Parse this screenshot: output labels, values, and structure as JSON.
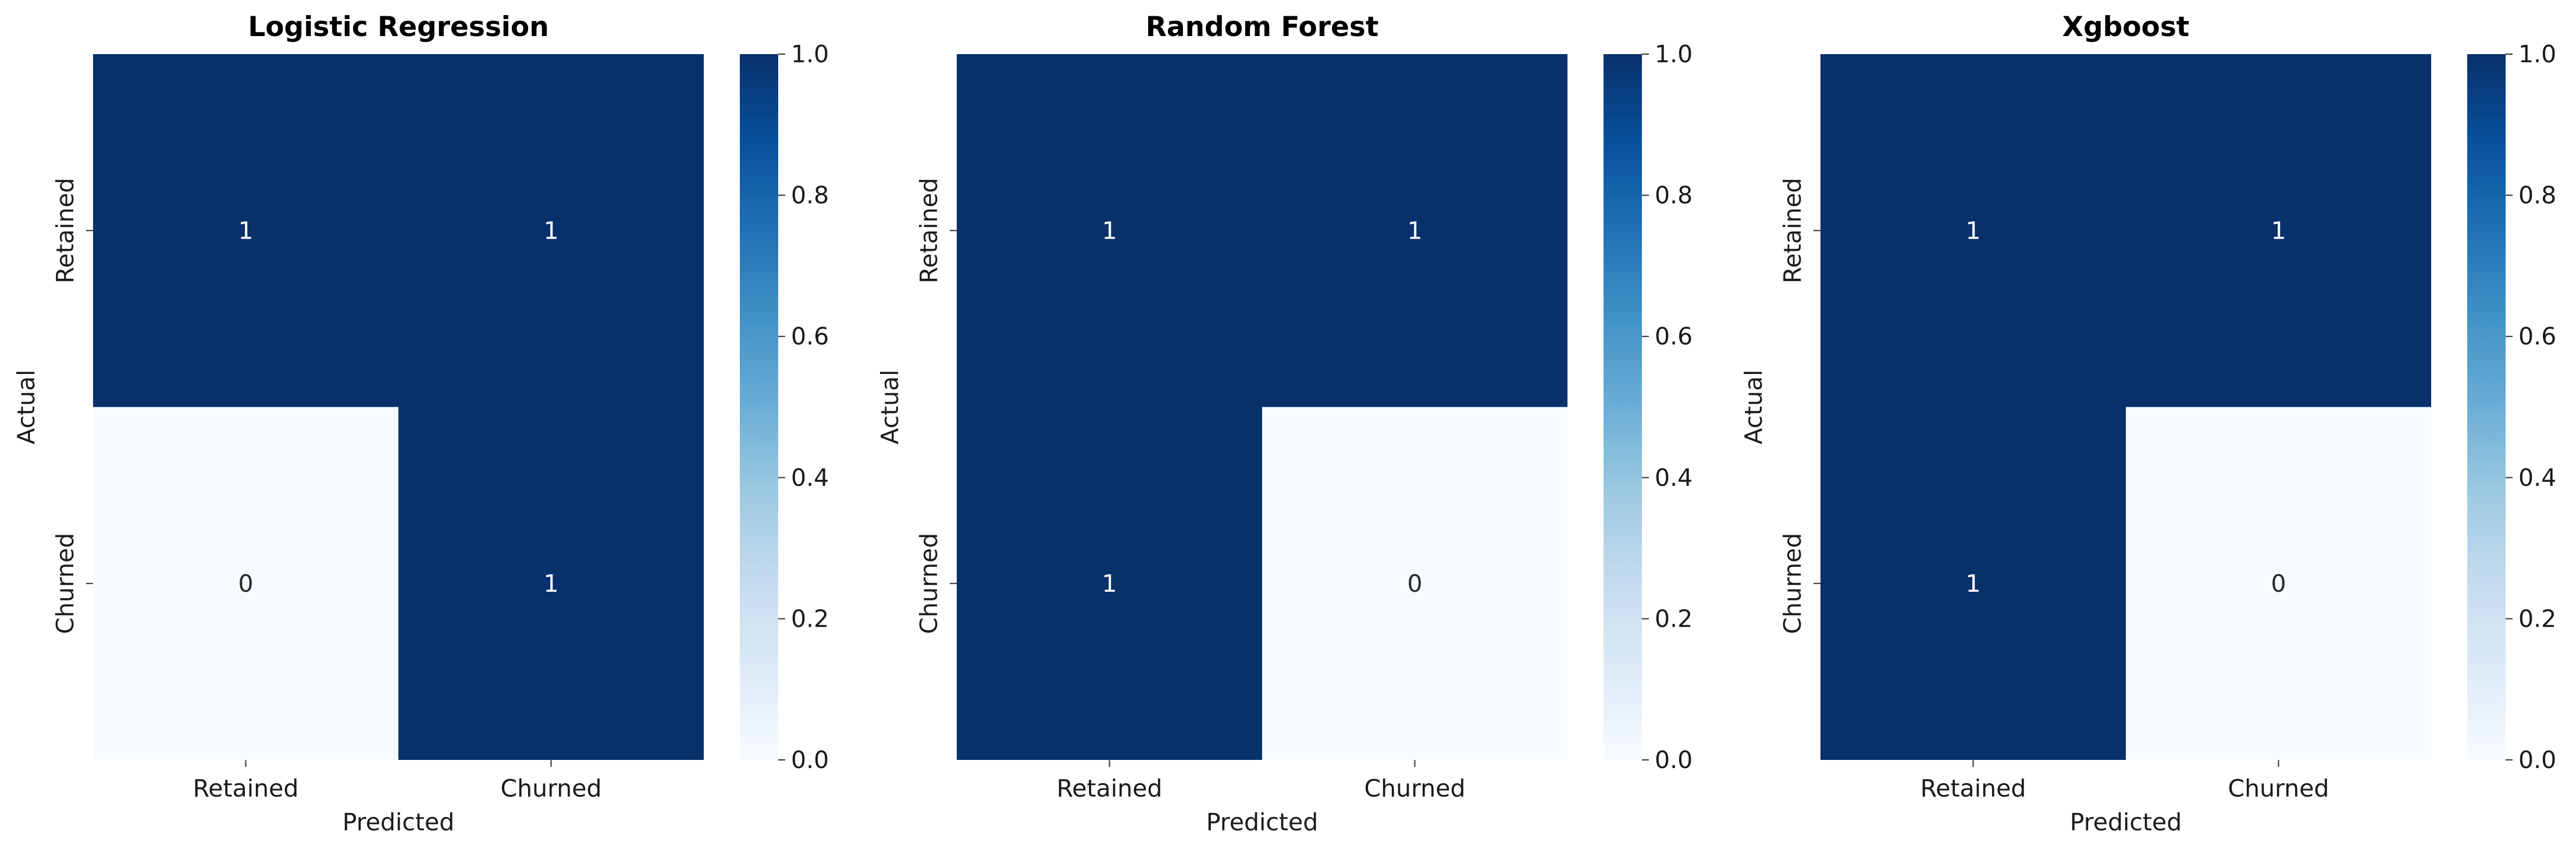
{
  "chart_data": [
    {
      "type": "heatmap",
      "title": "Logistic Regression",
      "xlabel": "Predicted",
      "ylabel": "Actual",
      "x_categories": [
        "Retained",
        "Churned"
      ],
      "y_categories": [
        "Retained",
        "Churned"
      ],
      "values": [
        [
          1,
          1
        ],
        [
          0,
          1
        ]
      ],
      "colorbar": {
        "colormap": "Blues",
        "range": [
          0,
          1
        ],
        "ticks": [
          "0.0",
          "0.2",
          "0.4",
          "0.6",
          "0.8",
          "1.0"
        ]
      }
    },
    {
      "type": "heatmap",
      "title": "Random Forest",
      "xlabel": "Predicted",
      "ylabel": "Actual",
      "x_categories": [
        "Retained",
        "Churned"
      ],
      "y_categories": [
        "Retained",
        "Churned"
      ],
      "values": [
        [
          1,
          1
        ],
        [
          1,
          0
        ]
      ],
      "colorbar": {
        "colormap": "Blues",
        "range": [
          0,
          1
        ],
        "ticks": [
          "0.0",
          "0.2",
          "0.4",
          "0.6",
          "0.8",
          "1.0"
        ]
      }
    },
    {
      "type": "heatmap",
      "title": "Xgboost",
      "xlabel": "Predicted",
      "ylabel": "Actual",
      "x_categories": [
        "Retained",
        "Churned"
      ],
      "y_categories": [
        "Retained",
        "Churned"
      ],
      "values": [
        [
          1,
          1
        ],
        [
          1,
          0
        ]
      ],
      "colorbar": {
        "colormap": "Blues",
        "range": [
          0,
          1
        ],
        "ticks": [
          "0.0",
          "0.2",
          "0.4",
          "0.6",
          "0.8",
          "1.0"
        ]
      }
    }
  ],
  "colors": {
    "high": "#08306b",
    "low": "#f7fbff",
    "annot_on_dark": "#ffffff",
    "annot_on_light": "#262626"
  }
}
